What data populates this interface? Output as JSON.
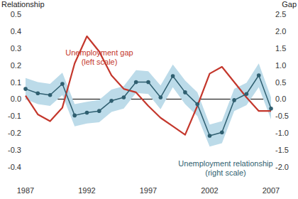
{
  "chart_data": {
    "type": "line",
    "y_label": "Relationship",
    "y2_label": "Gap",
    "x": [
      1987,
      1988,
      1989,
      1990,
      1991,
      1992,
      1993,
      1994,
      1995,
      1996,
      1997,
      1998,
      1999,
      2000,
      2001,
      2002,
      2003,
      2004,
      2005,
      2006,
      2007
    ],
    "xlim": [
      1987,
      2007
    ],
    "xticks": [
      1987,
      1992,
      1997,
      2002,
      2007
    ],
    "ylim": [
      -0.4,
      0.5
    ],
    "yticks": [
      -0.4,
      -0.3,
      -0.2,
      -0.1,
      {
        "value": 0,
        "label": "0.0"
      },
      0.1,
      0.2,
      0.3,
      0.4,
      0.5
    ],
    "y2lim": [
      -2.0,
      2.5
    ],
    "y2ticks": [
      {
        "value": -2,
        "label": "-2.0"
      },
      -1.5,
      {
        "value": -1,
        "label": "-1.0"
      },
      -0.5,
      {
        "value": 0,
        "label": "0.0"
      },
      0.5,
      {
        "value": 1,
        "label": "1.0"
      },
      1.5,
      {
        "value": 2,
        "label": "2.0"
      },
      2.5
    ],
    "grid": false,
    "series": [
      {
        "name": "Unemployment gap",
        "annotation": "(left scale)",
        "color": "#c4372c",
        "marker": "none",
        "values": [
          0.02,
          -0.09,
          -0.13,
          -0.05,
          0.21,
          0.37,
          0.28,
          0.14,
          0.06,
          0.04,
          -0.04,
          -0.11,
          -0.16,
          -0.21,
          -0.04,
          0.15,
          0.19,
          0.1,
          0.01,
          -0.07,
          -0.07
        ]
      },
      {
        "name": "Unemployment relationship",
        "annotation": "(right scale)",
        "color": "#2f5f70",
        "marker": "circle",
        "axis": "y2",
        "band_color": "#bcdbe9",
        "values": [
          0.3,
          0.17,
          0.12,
          0.45,
          -0.48,
          -0.4,
          -0.35,
          -0.05,
          0.05,
          0.5,
          0.5,
          0.05,
          0.68,
          0.2,
          -0.15,
          -1.08,
          -0.98,
          -0.03,
          0.15,
          0.7,
          -0.28
        ],
        "lower": [
          0.0,
          -0.15,
          -0.2,
          0.12,
          -0.8,
          -0.72,
          -0.68,
          -0.38,
          -0.28,
          0.18,
          0.15,
          -0.3,
          0.35,
          -0.15,
          -0.5,
          -1.4,
          -1.3,
          -0.35,
          -0.18,
          0.35,
          -0.6
        ],
        "upper": [
          0.62,
          0.5,
          0.45,
          0.78,
          -0.15,
          -0.08,
          -0.02,
          0.28,
          0.38,
          0.85,
          0.82,
          0.4,
          1.02,
          0.55,
          0.2,
          -0.75,
          -0.65,
          0.3,
          0.48,
          1.05,
          0.05
        ]
      }
    ]
  }
}
